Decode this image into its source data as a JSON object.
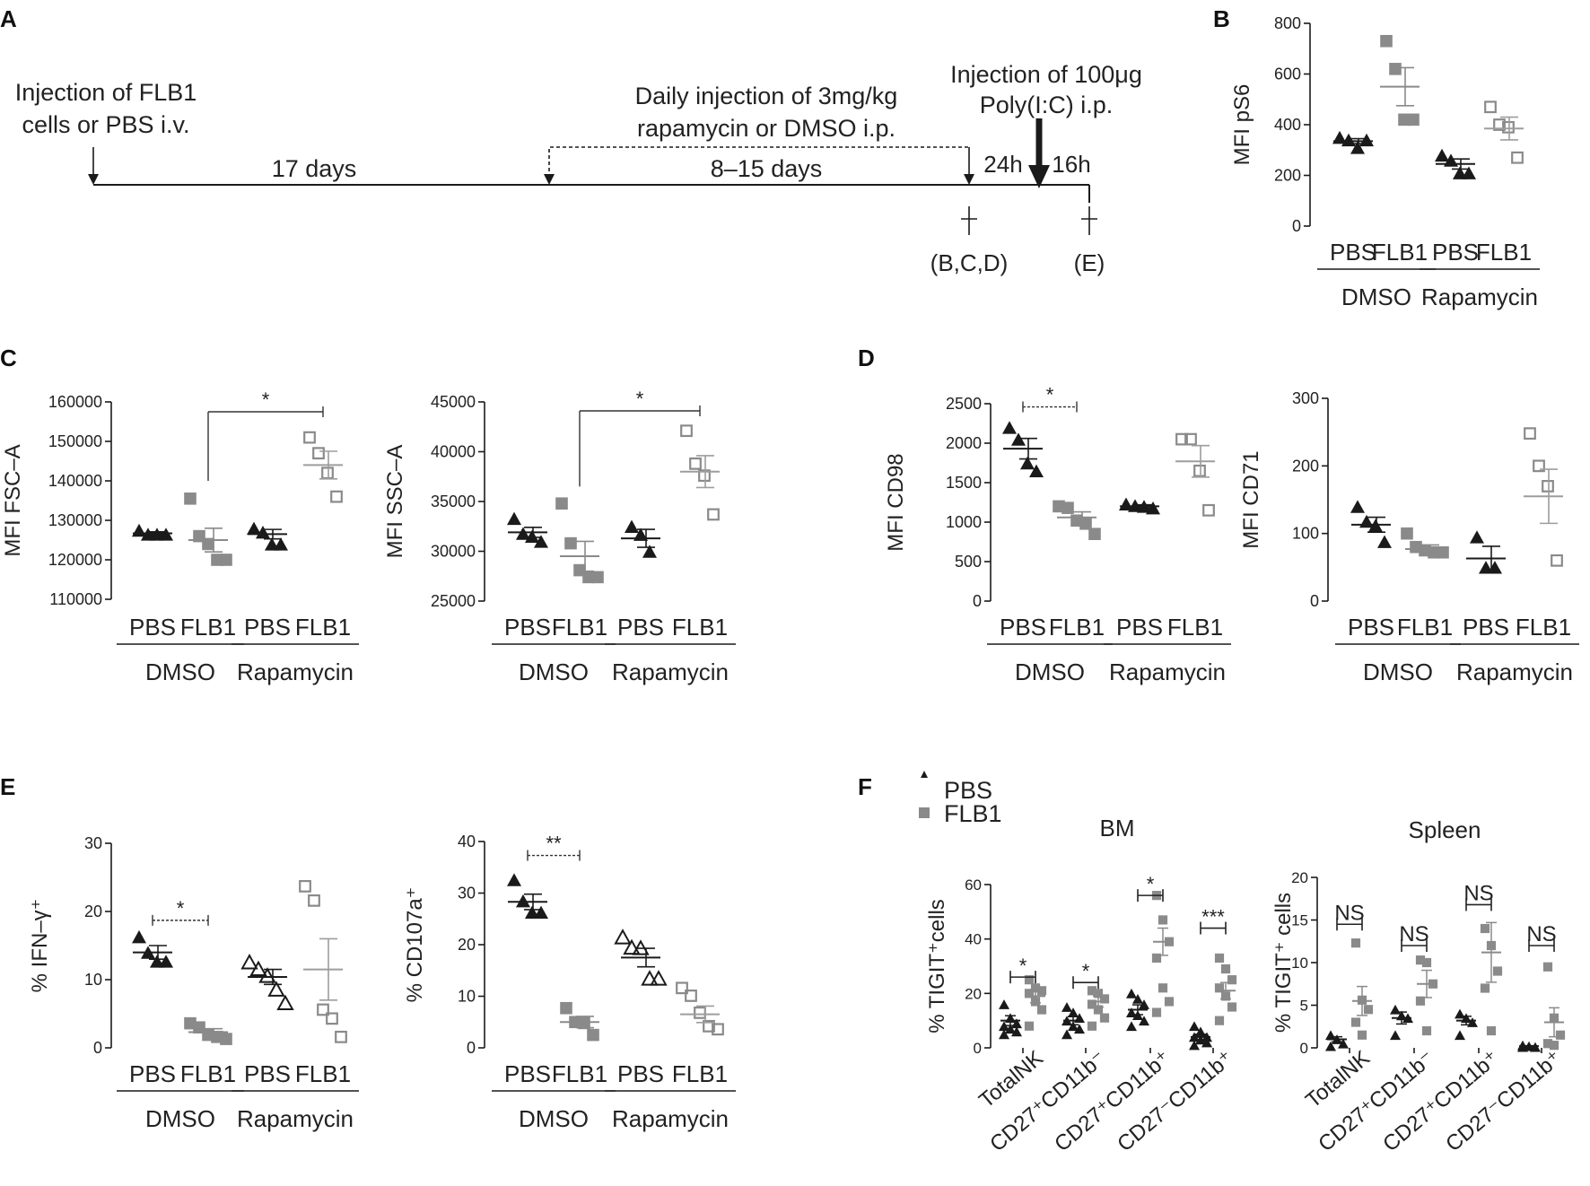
{
  "colors": {
    "black": "#1a1a1a",
    "gray": "#8a8a8a",
    "light_gray": "#9d9d9d"
  },
  "panels": {
    "A": {
      "letter": "A",
      "labels": {
        "inj_line1": "Injection of FLB1",
        "inj_line2": "cells or PBS i.v.",
        "daily_line1": "Daily injection of 3mg/kg",
        "daily_line2": "rapamycin or DMSO i.p.",
        "poly_line1": "Injection of 100μg",
        "poly_line2": "Poly(I:C) i.p.",
        "d17": "17 days",
        "d815": "8–15 days",
        "h24": "24h",
        "h16": "16h",
        "sac1": "(B,C,D)",
        "sac2": "(E)"
      }
    },
    "B": {
      "letter": "B"
    },
    "C": {
      "letter": "C"
    },
    "D": {
      "letter": "D"
    },
    "E": {
      "letter": "E"
    },
    "F": {
      "letter": "F",
      "legend": {
        "pbs": "PBS",
        "flb1": "FLB1"
      }
    }
  },
  "chart_data": [
    {
      "id": "B",
      "type": "scatter",
      "title": "",
      "ylabel": "MFI pS6",
      "ylim": [
        0,
        800
      ],
      "yticks": [
        "0",
        "200",
        "400",
        "600",
        "800"
      ],
      "ytick_values": [
        0,
        200,
        400,
        600,
        800
      ],
      "categories": [
        "PBS",
        "FLB1",
        "PBS",
        "FLB1"
      ],
      "groups": [
        {
          "label": "DMSO",
          "from": 0,
          "to": 1
        },
        {
          "label": "Rapamycin",
          "from": 2,
          "to": 3
        }
      ],
      "series": [
        {
          "name": "PBS DMSO",
          "marker": "tri_filled",
          "color": "black",
          "points": [
            350,
            340,
            310,
            340
          ],
          "mean": 335,
          "sem": 10
        },
        {
          "name": "FLB1 DMSO",
          "marker": "sq_filled",
          "color": "gray",
          "points": [
            730,
            620,
            420,
            420
          ],
          "mean": 550,
          "sem": 75
        },
        {
          "name": "PBS Rapamycin",
          "marker": "tri_filled",
          "color": "black",
          "points": [
            280,
            260,
            210,
            210
          ],
          "mean": 245,
          "sem": 20
        },
        {
          "name": "FLB1 Rapamycin",
          "marker": "sq_open",
          "color": "gray",
          "points": [
            470,
            400,
            390,
            270
          ],
          "mean": 385,
          "sem": 45
        }
      ],
      "annotations": []
    },
    {
      "id": "C1",
      "type": "scatter",
      "title": "",
      "ylabel": "MFI FSC–A",
      "ylim": [
        110000,
        160000
      ],
      "yticks": [
        "110000",
        "120000",
        "130000",
        "140000",
        "150000",
        "160000"
      ],
      "ytick_values": [
        110000,
        120000,
        130000,
        140000,
        150000,
        160000
      ],
      "categories": [
        "PBS",
        "FLB1",
        "PBS",
        "FLB1"
      ],
      "groups": [
        {
          "label": "DMSO",
          "from": 0,
          "to": 1
        },
        {
          "label": "Rapamycin",
          "from": 2,
          "to": 3
        }
      ],
      "series": [
        {
          "name": "PBS DMSO",
          "marker": "tri_filled",
          "color": "black",
          "points": [
            127500,
            126500,
            126500,
            126500
          ],
          "mean": 126700,
          "sem": 400
        },
        {
          "name": "FLB1 DMSO",
          "marker": "sq_filled",
          "color": "gray",
          "points": [
            135500,
            126000,
            124000,
            120000,
            120000
          ],
          "mean": 125000,
          "sem": 3000
        },
        {
          "name": "PBS Rapamycin",
          "marker": "tri_filled",
          "color": "black",
          "points": [
            128000,
            127000,
            124000,
            124000
          ],
          "mean": 126500,
          "sem": 1200
        },
        {
          "name": "FLB1 Rapamycin",
          "marker": "sq_open",
          "color": "gray",
          "points": [
            151000,
            147000,
            142000,
            136000
          ],
          "mean": 144000,
          "sem": 3500
        }
      ],
      "annotations": [
        {
          "from": 1,
          "to": 3,
          "text": "*",
          "y": 157500,
          "drop": 140000,
          "drop_side": "left"
        }
      ]
    },
    {
      "id": "C2",
      "type": "scatter",
      "title": "",
      "ylabel": "MFI SSC–A",
      "ylim": [
        25000,
        45000
      ],
      "yticks": [
        "25000",
        "30000",
        "35000",
        "40000",
        "45000"
      ],
      "ytick_values": [
        25000,
        30000,
        35000,
        40000,
        45000
      ],
      "categories": [
        "PBS",
        "FLB1",
        "PBS",
        "FLB1"
      ],
      "groups": [
        {
          "label": "DMSO",
          "from": 0,
          "to": 1
        },
        {
          "label": "Rapamycin",
          "from": 2,
          "to": 3
        }
      ],
      "series": [
        {
          "name": "PBS DMSO",
          "marker": "tri_filled",
          "color": "black",
          "points": [
            33300,
            31800,
            31500,
            31000
          ],
          "mean": 31900,
          "sem": 500
        },
        {
          "name": "FLB1 DMSO",
          "marker": "sq_filled",
          "color": "gray",
          "points": [
            34800,
            30800,
            28100,
            27400,
            27400
          ],
          "mean": 29500,
          "sem": 1500
        },
        {
          "name": "PBS Rapamycin",
          "marker": "tri_filled",
          "color": "black",
          "points": [
            32500,
            31700,
            30000
          ],
          "mean": 31300,
          "sem": 900
        },
        {
          "name": "FLB1 Rapamycin",
          "marker": "sq_open",
          "color": "gray",
          "points": [
            42100,
            38800,
            37600,
            33700
          ],
          "mean": 38000,
          "sem": 1600
        }
      ],
      "annotations": [
        {
          "from": 1,
          "to": 3,
          "text": "*",
          "y": 44100,
          "drop": 36500,
          "drop_side": "left"
        }
      ]
    },
    {
      "id": "D1",
      "type": "scatter",
      "title": "",
      "ylabel": "MFI CD98",
      "ylim": [
        0,
        2500
      ],
      "yticks": [
        "0",
        "500",
        "1000",
        "1500",
        "2000",
        "2500"
      ],
      "ytick_values": [
        0,
        500,
        1000,
        1500,
        2000,
        2500
      ],
      "categories": [
        "PBS",
        "FLB1",
        "PBS",
        "FLB1"
      ],
      "groups": [
        {
          "label": "DMSO",
          "from": 0,
          "to": 1
        },
        {
          "label": "Rapamycin",
          "from": 2,
          "to": 3
        }
      ],
      "series": [
        {
          "name": "PBS DMSO",
          "marker": "tri_filled",
          "color": "black",
          "points": [
            2200,
            2050,
            1750,
            1650
          ],
          "mean": 1930,
          "sem": 130
        },
        {
          "name": "FLB1 DMSO",
          "marker": "sq_filled",
          "color": "gray",
          "points": [
            1200,
            1180,
            1020,
            980,
            850
          ],
          "mean": 1060,
          "sem": 70
        },
        {
          "name": "PBS Rapamycin",
          "marker": "tri_filled",
          "color": "black",
          "points": [
            1230,
            1210,
            1200,
            1180
          ],
          "mean": 1200,
          "sem": 20
        },
        {
          "name": "FLB1 Rapamycin",
          "marker": "sq_open",
          "color": "gray",
          "points": [
            2050,
            2050,
            1650,
            1150
          ],
          "mean": 1770,
          "sem": 200
        }
      ],
      "annotations": [
        {
          "from": 0,
          "to": 1,
          "text": "*",
          "y": 2460,
          "drop": 2360,
          "drop_side": "both"
        }
      ]
    },
    {
      "id": "D2",
      "type": "scatter",
      "title": "",
      "ylabel": "MFI CD71",
      "ylim": [
        0,
        300
      ],
      "yticks": [
        "0",
        "100",
        "200",
        "300"
      ],
      "ytick_values": [
        0,
        100,
        200,
        300
      ],
      "categories": [
        "PBS",
        "FLB1",
        "PBS",
        "FLB1"
      ],
      "groups": [
        {
          "label": "DMSO",
          "from": 0,
          "to": 1
        },
        {
          "label": "Rapamycin",
          "from": 2,
          "to": 3
        }
      ],
      "series": [
        {
          "name": "PBS DMSO",
          "marker": "tri_filled",
          "color": "black",
          "points": [
            140,
            118,
            112,
            88
          ],
          "mean": 113,
          "sem": 11
        },
        {
          "name": "FLB1 DMSO",
          "marker": "sq_filled",
          "color": "gray",
          "points": [
            100,
            80,
            75,
            72,
            72
          ],
          "mean": 77,
          "sem": 6
        },
        {
          "name": "PBS Rapamycin",
          "marker": "tri_filled",
          "color": "black",
          "points": [
            95,
            50,
            50
          ],
          "mean": 63,
          "sem": 18
        },
        {
          "name": "FLB1 Rapamycin",
          "marker": "sq_open",
          "color": "gray",
          "points": [
            248,
            200,
            170,
            60
          ],
          "mean": 155,
          "sem": 40
        }
      ],
      "annotations": []
    },
    {
      "id": "E1",
      "type": "scatter",
      "title": "",
      "ylabel": "% IFN–γ⁺",
      "ylim": [
        0,
        30
      ],
      "yticks": [
        "0",
        "10",
        "20",
        "30"
      ],
      "ytick_values": [
        0,
        10,
        20,
        30
      ],
      "categories": [
        "PBS",
        "FLB1",
        "PBS",
        "FLB1"
      ],
      "groups": [
        {
          "label": "DMSO",
          "from": 0,
          "to": 1
        },
        {
          "label": "Rapamycin",
          "from": 2,
          "to": 3
        }
      ],
      "series": [
        {
          "name": "PBS DMSO",
          "marker": "tri_filled",
          "color": "black",
          "points": [
            16.3,
            14.0,
            12.7,
            12.7
          ],
          "mean": 14.0,
          "sem": 1.0
        },
        {
          "name": "FLB1 DMSO",
          "marker": "sq_filled",
          "color": "gray",
          "points": [
            3.6,
            3.0,
            1.9,
            1.6,
            1.3
          ],
          "mean": 2.3,
          "sem": 0.5
        },
        {
          "name": "PBS Rapamycin",
          "marker": "tri_open",
          "color": "black",
          "points": [
            12.6,
            11.6,
            10.6,
            8.6,
            6.6
          ],
          "mean": 10.4,
          "sem": 1.1
        },
        {
          "name": "FLB1 Rapamycin",
          "marker": "sq_open",
          "color": "gray",
          "points": [
            23.7,
            21.6,
            5.6,
            4.3,
            1.6
          ],
          "mean": 11.5,
          "sem": 4.5
        }
      ],
      "annotations": [
        {
          "from": 0,
          "to": 1,
          "text": "*",
          "y": 18.7,
          "drop": 17.8,
          "drop_side": "both"
        }
      ]
    },
    {
      "id": "E2",
      "type": "scatter",
      "title": "",
      "ylabel": "% CD107a⁺",
      "ylim": [
        0,
        40
      ],
      "yticks": [
        "0",
        "10",
        "20",
        "30",
        "40"
      ],
      "ytick_values": [
        0,
        10,
        20,
        30,
        40
      ],
      "categories": [
        "PBS",
        "FLB1",
        "PBS",
        "FLB1"
      ],
      "groups": [
        {
          "label": "DMSO",
          "from": 0,
          "to": 1
        },
        {
          "label": "Rapamycin",
          "from": 2,
          "to": 3
        }
      ],
      "series": [
        {
          "name": "PBS DMSO",
          "marker": "tri_filled",
          "color": "black",
          "points": [
            32.6,
            28.5,
            26.3,
            26.3
          ],
          "mean": 28.3,
          "sem": 1.5
        },
        {
          "name": "FLB1 DMSO",
          "marker": "sq_filled",
          "color": "gray",
          "points": [
            7.7,
            5.0,
            4.8,
            2.5
          ],
          "mean": 5.0,
          "sem": 1.1
        },
        {
          "name": "PBS Rapamycin",
          "marker": "tri_open",
          "color": "black",
          "points": [
            21.5,
            19.5,
            19.4,
            13.5,
            13.5
          ],
          "mean": 17.5,
          "sem": 1.8
        },
        {
          "name": "FLB1 Rapamycin",
          "marker": "sq_open",
          "color": "gray",
          "points": [
            11.6,
            10.1,
            6.8,
            4.2,
            3.6
          ],
          "mean": 6.5,
          "sem": 1.6
        }
      ],
      "annotations": [
        {
          "from": 0,
          "to": 1,
          "text": "**",
          "y": 37.3,
          "drop": 36.2,
          "drop_side": "both"
        }
      ]
    },
    {
      "id": "F1",
      "type": "scatter",
      "title": "BM",
      "ylabel": "% TIGIT⁺cells",
      "ylim": [
        0,
        60
      ],
      "yticks": [
        "0",
        "20",
        "40",
        "60"
      ],
      "ytick_values": [
        0,
        20,
        40,
        60
      ],
      "categories": [
        "TotalNK",
        "CD27⁺CD11b⁻",
        "CD27⁺CD11b⁺",
        "CD27⁻CD11b⁺"
      ],
      "series": [
        {
          "name": "PBS",
          "marker": "tri_filled",
          "color": "black",
          "values": [
            [
              16,
              11,
              9,
              8,
              7,
              6,
              5
            ],
            [
              15,
              13,
              11,
              10,
              8,
              7,
              5
            ],
            [
              20,
              18,
              16,
              13,
              12,
              10,
              8
            ],
            [
              8,
              6,
              4,
              4,
              3,
              2,
              1
            ]
          ],
          "means": [
            10,
            10,
            14,
            4
          ],
          "sems": [
            1.8,
            1.5,
            1.8,
            1.0
          ]
        },
        {
          "name": "FLB1",
          "marker": "sq_filled",
          "color": "gray",
          "values": [
            [
              25,
              22,
              21,
              20,
              17,
              14,
              8
            ],
            [
              21,
              20,
              18,
              16,
              14,
              11,
              8
            ],
            [
              56,
              47,
              39,
              33,
              22,
              17,
              13
            ],
            [
              33,
              29,
              25,
              22,
              19,
              15,
              10
            ]
          ],
          "means": [
            19,
            17,
            39,
            21
          ],
          "sems": [
            2.5,
            2.0,
            5.0,
            3.0
          ]
        }
      ],
      "annotations": [
        {
          "cat": 0,
          "text": "*",
          "y": 26
        },
        {
          "cat": 1,
          "text": "*",
          "y": 24
        },
        {
          "cat": 2,
          "text": "*",
          "y": 56
        },
        {
          "cat": 3,
          "text": "***",
          "y": 44
        }
      ]
    },
    {
      "id": "F2",
      "type": "scatter",
      "title": "Spleen",
      "ylabel": "% TIGIT⁺ cells",
      "ylim": [
        0,
        20
      ],
      "yticks": [
        "0",
        "5",
        "10",
        "15",
        "20"
      ],
      "ytick_values": [
        0,
        5,
        10,
        15,
        20
      ],
      "categories": [
        "TotalNK",
        "CD27⁺CD11b⁻",
        "CD27⁺CD11b⁺",
        "CD27⁻CD11b⁺"
      ],
      "series": [
        {
          "name": "PBS",
          "marker": "tri_filled",
          "color": "black",
          "values": [
            [
              1.5,
              1.0,
              0.5,
              0.2
            ],
            [
              4.5,
              3.8,
              3.5,
              1.5
            ],
            [
              4.0,
              3.5,
              3.0,
              1.5
            ],
            [
              0.3,
              0.2,
              0.1,
              0.1
            ]
          ],
          "means": [
            1.0,
            3.5,
            3.2,
            0.2
          ],
          "sems": [
            0.3,
            0.7,
            0.5,
            0.05
          ]
        },
        {
          "name": "FLB1",
          "marker": "sq_filled",
          "color": "gray",
          "values": [
            [
              12.3,
              5.6,
              4.5,
              3.0,
              1.5
            ],
            [
              10.3,
              10.0,
              7.5,
              5.5,
              2.0
            ],
            [
              14.0,
              12.0,
              9.0,
              7.0,
              2.0
            ],
            [
              9.5,
              3.5,
              1.5,
              0.5,
              0.3
            ]
          ],
          "means": [
            5.5,
            7.5,
            11.2,
            3.0
          ],
          "sems": [
            1.7,
            1.6,
            3.5,
            1.7
          ]
        }
      ],
      "annotations": [
        {
          "cat": 0,
          "text": "NS",
          "y": 14.5
        },
        {
          "cat": 1,
          "text": "NS",
          "y": 12.0
        },
        {
          "cat": 2,
          "text": "NS",
          "y": 16.8
        },
        {
          "cat": 3,
          "text": "NS",
          "y": 12.0
        }
      ]
    }
  ]
}
